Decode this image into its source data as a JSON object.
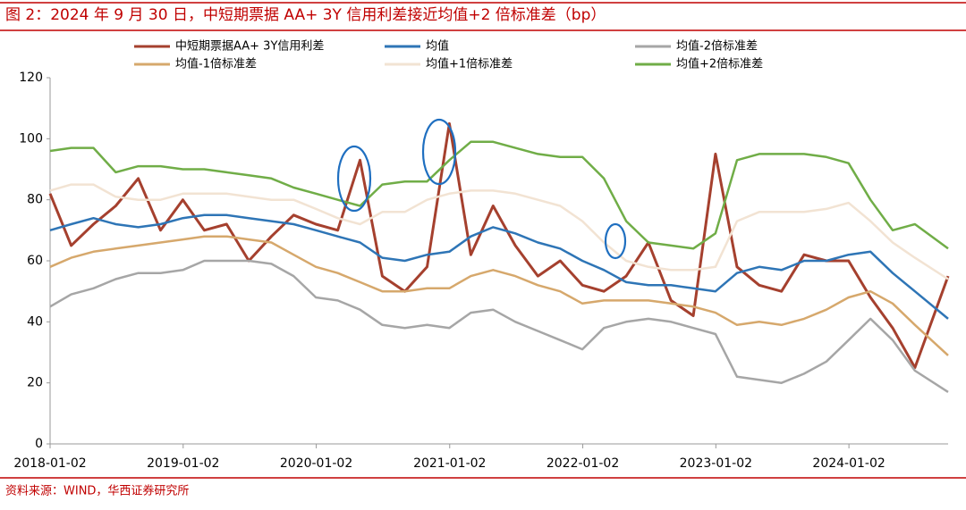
{
  "chart_data": {
    "type": "line",
    "title": "图 2：2024 年 9 月 30 日，中短期票据 AA+ 3Y 信用利差接近均值+2 倍标准差（bp）",
    "source": "资料来源：WIND，华西证券研究所",
    "x": [
      "2018-01-02",
      "2018-03-01",
      "2018-05-01",
      "2018-07-01",
      "2018-09-01",
      "2018-11-01",
      "2019-01-01",
      "2019-03-01",
      "2019-05-01",
      "2019-07-01",
      "2019-09-01",
      "2019-11-01",
      "2020-01-01",
      "2020-03-01",
      "2020-05-01",
      "2020-07-01",
      "2020-09-01",
      "2020-11-01",
      "2021-01-01",
      "2021-03-01",
      "2021-05-01",
      "2021-07-01",
      "2021-09-01",
      "2021-11-01",
      "2022-01-01",
      "2022-03-01",
      "2022-05-01",
      "2022-07-01",
      "2022-09-01",
      "2022-11-01",
      "2023-01-01",
      "2023-03-01",
      "2023-05-01",
      "2023-07-01",
      "2023-09-01",
      "2023-11-01",
      "2024-01-01",
      "2024-03-01",
      "2024-05-01",
      "2024-07-01",
      "2024-09-30"
    ],
    "series": [
      {
        "name": "中短期票据AA+ 3Y信用利差",
        "color": "#a5402e",
        "width": 3,
        "values": [
          82,
          65,
          72,
          78,
          87,
          70,
          80,
          70,
          72,
          60,
          68,
          75,
          72,
          70,
          93,
          55,
          50,
          58,
          105,
          62,
          78,
          65,
          55,
          60,
          52,
          50,
          55,
          66,
          47,
          42,
          95,
          58,
          52,
          50,
          62,
          60,
          60,
          48,
          38,
          25,
          55
        ]
      },
      {
        "name": "均值",
        "color": "#2e75b6",
        "width": 2.5,
        "values": [
          70,
          72,
          74,
          72,
          71,
          72,
          74,
          75,
          75,
          74,
          73,
          72,
          70,
          68,
          66,
          61,
          60,
          62,
          63,
          68,
          71,
          69,
          66,
          64,
          60,
          57,
          53,
          52,
          52,
          51,
          50,
          56,
          58,
          57,
          60,
          60,
          62,
          63,
          56,
          50,
          41
        ]
      },
      {
        "name": "均值-2倍标准差",
        "color": "#a6a6a6",
        "width": 2.5,
        "values": [
          45,
          49,
          51,
          54,
          56,
          56,
          57,
          60,
          60,
          60,
          59,
          55,
          48,
          47,
          44,
          39,
          38,
          39,
          38,
          43,
          44,
          40,
          37,
          34,
          31,
          38,
          40,
          41,
          40,
          38,
          36,
          22,
          21,
          20,
          23,
          27,
          34,
          41,
          34,
          24,
          17
        ]
      },
      {
        "name": "均值-1倍标准差",
        "color": "#d6a86c",
        "width": 2.5,
        "values": [
          58,
          61,
          63,
          64,
          65,
          66,
          67,
          68,
          68,
          67,
          66,
          62,
          58,
          56,
          53,
          50,
          50,
          51,
          51,
          55,
          57,
          55,
          52,
          50,
          46,
          47,
          47,
          47,
          46,
          45,
          43,
          39,
          40,
          39,
          41,
          44,
          48,
          50,
          46,
          39,
          29
        ]
      },
      {
        "name": "均值+1倍标准差",
        "color": "#f2e3d3",
        "width": 2.5,
        "values": [
          83,
          85,
          85,
          81,
          80,
          80,
          82,
          82,
          82,
          81,
          80,
          80,
          77,
          74,
          72,
          76,
          76,
          80,
          82,
          83,
          83,
          82,
          80,
          78,
          73,
          66,
          60,
          58,
          57,
          57,
          58,
          73,
          76,
          76,
          76,
          77,
          79,
          73,
          66,
          61,
          54
        ]
      },
      {
        "name": "均值+2倍标准差",
        "color": "#70ad47",
        "width": 2.5,
        "values": [
          96,
          97,
          97,
          89,
          91,
          91,
          90,
          90,
          89,
          88,
          87,
          84,
          82,
          80,
          78,
          85,
          86,
          86,
          93,
          99,
          99,
          97,
          95,
          94,
          94,
          87,
          73,
          66,
          65,
          64,
          69,
          93,
          95,
          95,
          95,
          94,
          92,
          80,
          70,
          72,
          64
        ]
      }
    ],
    "xlim": [
      "2018-01-02",
      "2024-09-30"
    ],
    "xticks": [
      "2018-01-02",
      "2019-01-02",
      "2020-01-02",
      "2021-01-02",
      "2022-01-02",
      "2023-01-02",
      "2024-01-02"
    ],
    "ylim": [
      0,
      120
    ],
    "yticks": [
      0,
      20,
      40,
      60,
      80,
      100,
      120
    ],
    "grid": false
  }
}
